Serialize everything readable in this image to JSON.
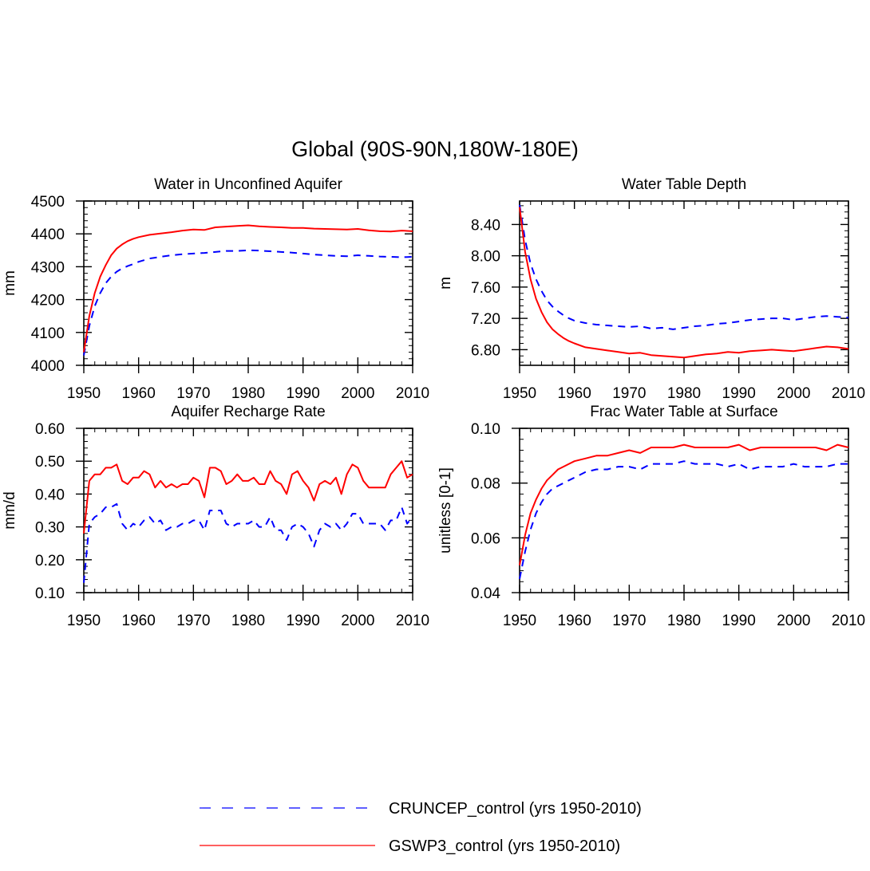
{
  "title": "Global (90S-90N,180W-180E)",
  "colors": {
    "cruncep": "#0000ff",
    "gswp3": "#ff0000",
    "axis": "#000000"
  },
  "legend": {
    "items": [
      {
        "label": "CRUNCEP_control (yrs 1950-2010)",
        "color": "#0000ff",
        "dash": "dashed"
      },
      {
        "label": "GSWP3_control (yrs 1950-2010)",
        "color": "#ff0000",
        "dash": "solid"
      }
    ]
  },
  "chart_data": [
    {
      "type": "line",
      "title": "Water in Unconfined Aquifer",
      "xlabel": "",
      "ylabel": "mm",
      "xlim": [
        1950,
        2010
      ],
      "ylim": [
        4000,
        4500
      ],
      "xticks": [
        "1950",
        "1960",
        "1970",
        "1980",
        "1990",
        "2000",
        "2010"
      ],
      "yticks": [
        "4000",
        "4100",
        "4200",
        "4300",
        "4400",
        "4500"
      ],
      "x": [
        1950,
        1951,
        1952,
        1953,
        1954,
        1955,
        1956,
        1957,
        1958,
        1959,
        1960,
        1962,
        1964,
        1966,
        1968,
        1970,
        1972,
        1974,
        1976,
        1978,
        1980,
        1982,
        1984,
        1986,
        1988,
        1990,
        1992,
        1994,
        1996,
        1998,
        2000,
        2002,
        2004,
        2006,
        2008,
        2010
      ],
      "series": [
        {
          "name": "CRUNCEP_control",
          "values": [
            4030,
            4120,
            4180,
            4220,
            4250,
            4270,
            4285,
            4295,
            4302,
            4308,
            4315,
            4325,
            4330,
            4335,
            4338,
            4340,
            4342,
            4345,
            4348,
            4348,
            4350,
            4349,
            4347,
            4345,
            4343,
            4340,
            4337,
            4335,
            4333,
            4332,
            4335,
            4333,
            4331,
            4330,
            4329,
            4330
          ]
        },
        {
          "name": "GSWP3_control",
          "values": [
            4040,
            4150,
            4220,
            4270,
            4305,
            4335,
            4355,
            4368,
            4378,
            4385,
            4390,
            4397,
            4401,
            4405,
            4410,
            4413,
            4412,
            4420,
            4422,
            4424,
            4426,
            4423,
            4421,
            4420,
            4418,
            4418,
            4416,
            4415,
            4414,
            4413,
            4415,
            4411,
            4408,
            4407,
            4410,
            4408
          ]
        }
      ]
    },
    {
      "type": "line",
      "title": "Water Table Depth",
      "xlabel": "",
      "ylabel": "m",
      "xlim": [
        1950,
        2010
      ],
      "ylim": [
        6.6,
        8.7
      ],
      "xticks": [
        "1950",
        "1960",
        "1970",
        "1980",
        "1990",
        "2000",
        "2010"
      ],
      "yticks": [
        "6.80",
        "7.20",
        "7.60",
        "8.00",
        "8.40"
      ],
      "x": [
        1950,
        1951,
        1952,
        1953,
        1954,
        1955,
        1956,
        1957,
        1958,
        1959,
        1960,
        1962,
        1964,
        1966,
        1968,
        1970,
        1972,
        1974,
        1976,
        1978,
        1980,
        1982,
        1984,
        1986,
        1988,
        1990,
        1992,
        1994,
        1996,
        1998,
        2000,
        2002,
        2004,
        2006,
        2008,
        2010
      ],
      "series": [
        {
          "name": "CRUNCEP_control",
          "values": [
            8.65,
            8.2,
            7.9,
            7.7,
            7.55,
            7.43,
            7.35,
            7.29,
            7.24,
            7.2,
            7.17,
            7.14,
            7.12,
            7.11,
            7.1,
            7.09,
            7.1,
            7.07,
            7.08,
            7.06,
            7.08,
            7.1,
            7.11,
            7.13,
            7.14,
            7.16,
            7.18,
            7.19,
            7.2,
            7.2,
            7.18,
            7.2,
            7.22,
            7.23,
            7.22,
            7.21
          ]
        },
        {
          "name": "GSWP3_control",
          "values": [
            8.62,
            8.05,
            7.7,
            7.45,
            7.28,
            7.15,
            7.06,
            7.0,
            6.95,
            6.91,
            6.88,
            6.83,
            6.81,
            6.79,
            6.77,
            6.75,
            6.76,
            6.73,
            6.72,
            6.71,
            6.7,
            6.72,
            6.74,
            6.75,
            6.77,
            6.76,
            6.78,
            6.79,
            6.8,
            6.79,
            6.78,
            6.8,
            6.82,
            6.84,
            6.83,
            6.81
          ]
        }
      ]
    },
    {
      "type": "line",
      "title": "Aquifer Recharge Rate",
      "xlabel": "",
      "ylabel": "mm/d",
      "xlim": [
        1950,
        2010
      ],
      "ylim": [
        0.1,
        0.6
      ],
      "xticks": [
        "1950",
        "1960",
        "1970",
        "1980",
        "1990",
        "2000",
        "2010"
      ],
      "yticks": [
        "0.10",
        "0.20",
        "0.30",
        "0.40",
        "0.50",
        "0.60"
      ],
      "x": [
        1950,
        1951,
        1952,
        1953,
        1954,
        1955,
        1956,
        1957,
        1958,
        1959,
        1960,
        1961,
        1962,
        1963,
        1964,
        1965,
        1966,
        1967,
        1968,
        1969,
        1970,
        1971,
        1972,
        1973,
        1974,
        1975,
        1976,
        1977,
        1978,
        1979,
        1980,
        1981,
        1982,
        1983,
        1984,
        1985,
        1986,
        1987,
        1988,
        1989,
        1990,
        1991,
        1992,
        1993,
        1994,
        1995,
        1996,
        1997,
        1998,
        1999,
        2000,
        2001,
        2002,
        2003,
        2004,
        2005,
        2006,
        2007,
        2008,
        2009,
        2010
      ],
      "series": [
        {
          "name": "CRUNCEP_control",
          "values": [
            0.13,
            0.31,
            0.33,
            0.34,
            0.36,
            0.36,
            0.37,
            0.31,
            0.29,
            0.31,
            0.3,
            0.32,
            0.33,
            0.31,
            0.32,
            0.29,
            0.3,
            0.3,
            0.31,
            0.31,
            0.32,
            0.32,
            0.29,
            0.35,
            0.35,
            0.35,
            0.31,
            0.3,
            0.31,
            0.31,
            0.31,
            0.32,
            0.3,
            0.3,
            0.33,
            0.29,
            0.29,
            0.26,
            0.3,
            0.31,
            0.3,
            0.28,
            0.24,
            0.29,
            0.31,
            0.3,
            0.31,
            0.29,
            0.31,
            0.34,
            0.34,
            0.31,
            0.31,
            0.31,
            0.31,
            0.29,
            0.32,
            0.32,
            0.36,
            0.31,
            0.33
          ]
        },
        {
          "name": "GSWP3_control",
          "values": [
            0.28,
            0.44,
            0.46,
            0.46,
            0.48,
            0.48,
            0.49,
            0.44,
            0.43,
            0.45,
            0.45,
            0.47,
            0.46,
            0.42,
            0.44,
            0.42,
            0.43,
            0.42,
            0.43,
            0.43,
            0.45,
            0.44,
            0.39,
            0.48,
            0.48,
            0.47,
            0.43,
            0.44,
            0.46,
            0.44,
            0.44,
            0.45,
            0.43,
            0.43,
            0.47,
            0.44,
            0.43,
            0.4,
            0.46,
            0.47,
            0.44,
            0.42,
            0.38,
            0.43,
            0.44,
            0.43,
            0.45,
            0.4,
            0.46,
            0.49,
            0.48,
            0.44,
            0.42,
            0.42,
            0.42,
            0.42,
            0.46,
            0.48,
            0.5,
            0.45,
            0.46
          ]
        }
      ]
    },
    {
      "type": "line",
      "title": "Frac Water Table at Surface",
      "xlabel": "",
      "ylabel": "unitless [0-1]",
      "xlim": [
        1950,
        2010
      ],
      "ylim": [
        0.04,
        0.1
      ],
      "xticks": [
        "1950",
        "1960",
        "1970",
        "1980",
        "1990",
        "2000",
        "2010"
      ],
      "yticks": [
        "0.04",
        "0.06",
        "0.08",
        "0.10"
      ],
      "x": [
        1950,
        1951,
        1952,
        1953,
        1954,
        1955,
        1956,
        1957,
        1958,
        1959,
        1960,
        1962,
        1964,
        1966,
        1968,
        1970,
        1972,
        1974,
        1976,
        1978,
        1980,
        1982,
        1984,
        1986,
        1988,
        1990,
        1992,
        1994,
        1996,
        1998,
        2000,
        2002,
        2004,
        2006,
        2008,
        2010
      ],
      "series": [
        {
          "name": "CRUNCEP_control",
          "values": [
            0.045,
            0.055,
            0.063,
            0.069,
            0.073,
            0.076,
            0.078,
            0.079,
            0.08,
            0.081,
            0.082,
            0.084,
            0.085,
            0.085,
            0.086,
            0.086,
            0.085,
            0.087,
            0.087,
            0.087,
            0.088,
            0.087,
            0.087,
            0.087,
            0.086,
            0.087,
            0.085,
            0.086,
            0.086,
            0.086,
            0.087,
            0.086,
            0.086,
            0.086,
            0.087,
            0.087
          ]
        },
        {
          "name": "GSWP3_control",
          "values": [
            0.05,
            0.061,
            0.069,
            0.074,
            0.078,
            0.081,
            0.083,
            0.085,
            0.086,
            0.087,
            0.088,
            0.089,
            0.09,
            0.09,
            0.091,
            0.092,
            0.091,
            0.093,
            0.093,
            0.093,
            0.094,
            0.093,
            0.093,
            0.093,
            0.093,
            0.094,
            0.092,
            0.093,
            0.093,
            0.093,
            0.093,
            0.093,
            0.093,
            0.092,
            0.094,
            0.093
          ]
        }
      ]
    }
  ]
}
